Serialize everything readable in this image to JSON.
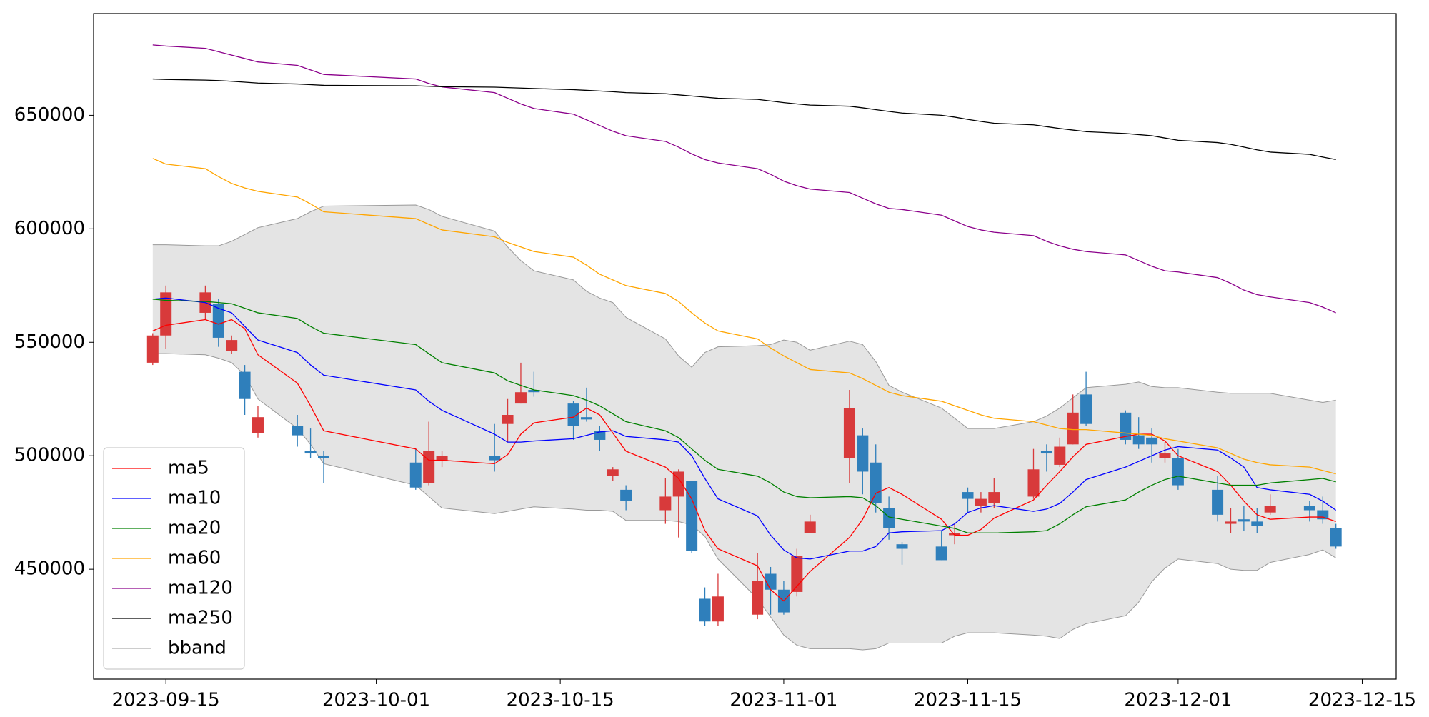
{
  "chart_data": {
    "type": "candlestick",
    "x": [
      "2023-09-14",
      "2023-09-15",
      "2023-09-18",
      "2023-09-19",
      "2023-09-20",
      "2023-09-21",
      "2023-09-22",
      "2023-09-25",
      "2023-09-26",
      "2023-09-27",
      "2023-10-04",
      "2023-10-05",
      "2023-10-06",
      "2023-10-10",
      "2023-10-11",
      "2023-10-12",
      "2023-10-13",
      "2023-10-16",
      "2023-10-17",
      "2023-10-18",
      "2023-10-19",
      "2023-10-20",
      "2023-10-23",
      "2023-10-24",
      "2023-10-25",
      "2023-10-26",
      "2023-10-27",
      "2023-10-30",
      "2023-10-31",
      "2023-11-01",
      "2023-11-02",
      "2023-11-03",
      "2023-11-06",
      "2023-11-07",
      "2023-11-08",
      "2023-11-09",
      "2023-11-10",
      "2023-11-13",
      "2023-11-14",
      "2023-11-15",
      "2023-11-16",
      "2023-11-17",
      "2023-11-20",
      "2023-11-21",
      "2023-11-22",
      "2023-11-23",
      "2023-11-24",
      "2023-11-27",
      "2023-11-28",
      "2023-11-29",
      "2023-11-30",
      "2023-12-01",
      "2023-12-04",
      "2023-12-05",
      "2023-12-06",
      "2023-12-07",
      "2023-12-08",
      "2023-12-11",
      "2023-12-12",
      "2023-12-13"
    ],
    "open": [
      541000,
      553000,
      563000,
      567000,
      546000,
      537000,
      510000,
      513000,
      502000,
      500000,
      497000,
      488000,
      498000,
      500000,
      514000,
      523000,
      529000,
      523000,
      517000,
      511000,
      491000,
      485000,
      476000,
      482000,
      489000,
      437000,
      427000,
      430000,
      448000,
      441000,
      440000,
      466000,
      499000,
      509000,
      497000,
      477000,
      461000,
      460000,
      465000,
      484000,
      478000,
      479000,
      482000,
      502000,
      496000,
      505000,
      527000,
      519000,
      509000,
      508000,
      499000,
      499000,
      485000,
      470000,
      472000,
      471000,
      475000,
      478000,
      476000,
      468000
    ],
    "high": [
      554000,
      575000,
      575000,
      569000,
      553000,
      540000,
      522000,
      518000,
      512000,
      502000,
      503000,
      515000,
      502000,
      514000,
      525000,
      541000,
      537000,
      524000,
      530000,
      513000,
      495000,
      487000,
      490000,
      494000,
      489000,
      442000,
      448000,
      457000,
      451000,
      445000,
      459000,
      474000,
      529000,
      512000,
      505000,
      482000,
      462000,
      467000,
      470000,
      486000,
      484000,
      490000,
      503000,
      505000,
      508000,
      527000,
      537000,
      520000,
      517000,
      512000,
      506000,
      503000,
      491000,
      477000,
      478000,
      477000,
      483000,
      480000,
      482000,
      470000
    ],
    "low": [
      540000,
      547000,
      560000,
      548000,
      545000,
      518000,
      508000,
      504000,
      499000,
      488000,
      485000,
      487000,
      495000,
      493000,
      506000,
      523000,
      526000,
      507000,
      515000,
      502000,
      489000,
      476000,
      470000,
      464000,
      457000,
      425000,
      425000,
      428000,
      430000,
      430000,
      438000,
      466000,
      488000,
      483000,
      475000,
      463000,
      452000,
      454000,
      461000,
      475000,
      475000,
      477000,
      481000,
      493000,
      495000,
      505000,
      513000,
      505000,
      503000,
      497000,
      497000,
      485000,
      471000,
      466000,
      467000,
      466000,
      474000,
      471000,
      470000,
      459000
    ],
    "close": [
      553000,
      572000,
      572000,
      552000,
      551000,
      525000,
      517000,
      509000,
      501000,
      499000,
      486000,
      502000,
      500000,
      498000,
      518000,
      528000,
      528000,
      513000,
      516000,
      507000,
      494000,
      480000,
      482000,
      493000,
      458000,
      427000,
      438000,
      445000,
      441000,
      431000,
      456000,
      471000,
      521000,
      493000,
      479000,
      468000,
      459000,
      454000,
      466000,
      481000,
      481000,
      484000,
      494000,
      501000,
      504000,
      519000,
      514000,
      507000,
      505000,
      505000,
      501000,
      487000,
      474000,
      471000,
      471000,
      469000,
      478000,
      476000,
      472000,
      460000
    ],
    "up_color": "#d83a3b",
    "down_color": "#2f7fbb",
    "lines": [
      {
        "name": "ma5",
        "color": "#ff0000",
        "values": [
          555000,
          557500,
          560000,
          558000,
          560000,
          556000,
          544500,
          532000,
          522000,
          511000,
          503000,
          498000,
          498000,
          496500,
          500500,
          509500,
          514500,
          517000,
          521000,
          518000,
          510000,
          502000,
          495000,
          490000,
          481000,
          467000,
          459000,
          451500,
          441000,
          436000,
          442500,
          449000,
          464000,
          472000,
          483500,
          486000,
          483000,
          472000,
          465000,
          465000,
          467500,
          472500,
          480500,
          487000,
          493000,
          499500,
          505000,
          508500,
          509500,
          509500,
          506500,
          500000,
          493000,
          487000,
          480000,
          474000,
          472000,
          473000,
          473000,
          471000
        ]
      },
      {
        "name": "ma10",
        "color": "#0000ff",
        "values": [
          569000,
          569500,
          567500,
          565000,
          563000,
          557000,
          551000,
          545500,
          540000,
          535500,
          529000,
          524000,
          520000,
          509500,
          506000,
          506000,
          506500,
          507500,
          509000,
          510500,
          511000,
          508500,
          507000,
          506000,
          500000,
          490000,
          481000,
          473500,
          465000,
          458500,
          455000,
          454500,
          458000,
          458000,
          460000,
          466000,
          466500,
          467000,
          470000,
          475000,
          477000,
          478000,
          475500,
          476500,
          479000,
          484000,
          489500,
          495000,
          497500,
          500000,
          502500,
          504000,
          502500,
          499000,
          495000,
          486000,
          485000,
          483000,
          480000,
          476000
        ]
      },
      {
        "name": "ma20",
        "color": "#008000",
        "values": [
          569000,
          568500,
          568000,
          567500,
          567000,
          565000,
          563000,
          560500,
          557000,
          554000,
          549000,
          545000,
          541000,
          536500,
          533000,
          531000,
          529000,
          526500,
          524500,
          522000,
          518500,
          515000,
          511000,
          508000,
          503000,
          498000,
          494000,
          491000,
          488000,
          484000,
          482000,
          481500,
          482000,
          481500,
          478000,
          473000,
          472000,
          469000,
          468000,
          466000,
          466000,
          466000,
          466500,
          467000,
          470000,
          474000,
          477500,
          480500,
          484000,
          487000,
          489500,
          491000,
          488000,
          487000,
          487000,
          487000,
          488000,
          489500,
          490000,
          488500
        ]
      },
      {
        "name": "ma60",
        "color": "#ffa500",
        "values": [
          631000,
          628500,
          626500,
          623000,
          620000,
          618000,
          616500,
          614000,
          611000,
          607500,
          604500,
          602000,
          599500,
          596500,
          594000,
          592000,
          590000,
          587500,
          584000,
          580000,
          577500,
          575000,
          571500,
          568000,
          563000,
          558500,
          555000,
          551500,
          547500,
          544000,
          541000,
          538000,
          536500,
          534000,
          531000,
          528000,
          526500,
          524000,
          522000,
          520000,
          518000,
          516500,
          515000,
          513500,
          512000,
          511500,
          511500,
          510000,
          509500,
          509000,
          507500,
          506500,
          503500,
          501000,
          498500,
          497000,
          496000,
          495000,
          493500,
          492000
        ]
      },
      {
        "name": "ma120",
        "color": "#8b008b",
        "values": [
          681000,
          680500,
          679500,
          678000,
          676500,
          675000,
          673500,
          672000,
          670000,
          668000,
          666000,
          664000,
          662500,
          660000,
          657500,
          655000,
          653000,
          650500,
          648000,
          645500,
          643000,
          641000,
          638500,
          636000,
          633000,
          630500,
          629000,
          626500,
          624000,
          621000,
          619000,
          617500,
          616000,
          613500,
          611000,
          609000,
          608500,
          606000,
          603500,
          601000,
          599500,
          598500,
          597000,
          594500,
          592500,
          591000,
          590000,
          588500,
          586000,
          583500,
          581500,
          581000,
          578500,
          576000,
          573000,
          571000,
          570000,
          567500,
          565500,
          563000
        ]
      },
      {
        "name": "ma250",
        "color": "#000000",
        "values": [
          666000,
          665800,
          665500,
          665300,
          665000,
          664600,
          664200,
          663800,
          663500,
          663200,
          663000,
          662800,
          662600,
          662400,
          662200,
          662000,
          661800,
          661300,
          661000,
          660700,
          660400,
          660000,
          659500,
          659000,
          658500,
          658000,
          657500,
          657000,
          656300,
          655600,
          655000,
          654500,
          654000,
          653300,
          652500,
          651700,
          651000,
          650000,
          649200,
          648200,
          647300,
          646500,
          645800,
          645000,
          644200,
          643500,
          642800,
          642000,
          641500,
          641000,
          640000,
          639000,
          638000,
          637200,
          636000,
          634800,
          633800,
          632800,
          631600,
          630500
        ]
      }
    ],
    "bband": {
      "name": "bband",
      "color": "#999999",
      "fill": "#e4e4e4",
      "upper": [
        593000,
        593000,
        592500,
        592500,
        594500,
        597500,
        600500,
        604500,
        607500,
        610000,
        610500,
        608500,
        605500,
        599000,
        592000,
        586000,
        581500,
        577500,
        572500,
        569500,
        567500,
        561000,
        551500,
        544000,
        539000,
        545500,
        548000,
        548500,
        549000,
        551000,
        550000,
        546500,
        550500,
        549000,
        541500,
        531000,
        528000,
        521000,
        516500,
        512000,
        512000,
        512000,
        515000,
        517500,
        521000,
        525500,
        530000,
        531500,
        532500,
        530500,
        530000,
        530000,
        528000,
        527500,
        527500,
        527500,
        527500,
        524500,
        523500,
        524500
      ],
      "lower": [
        545000,
        545000,
        544500,
        543000,
        541000,
        535500,
        525000,
        512000,
        505000,
        496500,
        487000,
        482000,
        477000,
        474500,
        475500,
        476500,
        477500,
        476500,
        476000,
        476000,
        475500,
        471500,
        471500,
        471000,
        469500,
        464500,
        454500,
        437000,
        429000,
        421000,
        416500,
        415000,
        415000,
        414500,
        415000,
        417500,
        417500,
        417500,
        420500,
        422000,
        422000,
        422000,
        421000,
        420500,
        419500,
        423500,
        426000,
        429500,
        435500,
        444500,
        450500,
        454500,
        452500,
        450000,
        449500,
        449500,
        453000,
        456500,
        458500,
        455000
      ]
    },
    "xlim": [
      "2023-09-09T12:00Z",
      "2023-12-17T14:00Z"
    ],
    "xticks": [
      "2023-09-15",
      "2023-10-01",
      "2023-10-15",
      "2023-11-01",
      "2023-11-15",
      "2023-12-01",
      "2023-12-15"
    ],
    "ylim": [
      401600,
      694800
    ],
    "yticks": [
      450000,
      500000,
      550000,
      600000,
      650000
    ],
    "legend": "lower left"
  }
}
